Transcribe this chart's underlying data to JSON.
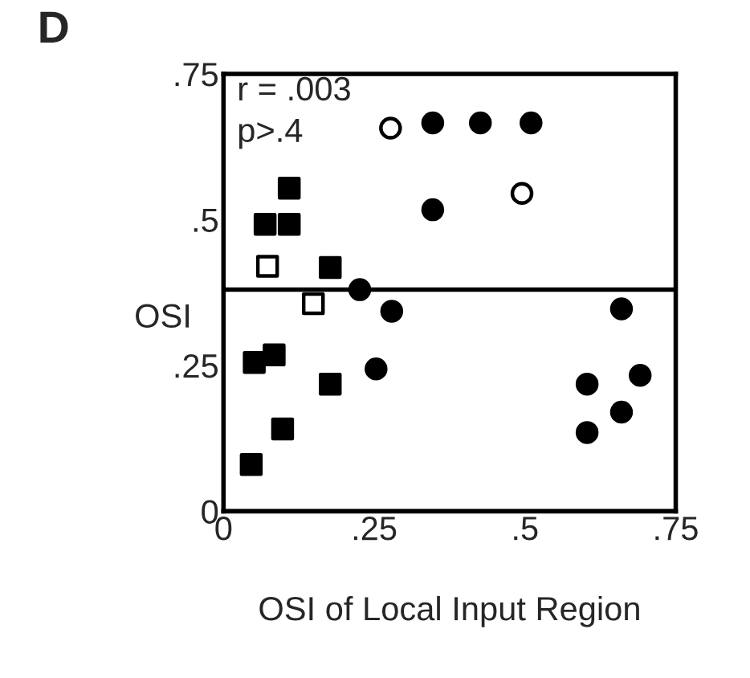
{
  "chart_data": {
    "type": "scatter",
    "title": "D",
    "xlabel": "OSI of Local Input Region",
    "ylabel": "OSI",
    "annotations": [
      "r = .003",
      "p>.4"
    ],
    "series": [
      {
        "color": "#000000",
        "marker": "circle",
        "x": [
          0.347,
          0.426,
          0.51,
          0.347,
          0.226,
          0.279,
          0.253,
          0.66,
          0.603,
          0.691,
          0.66,
          0.603
        ],
        "values": [
          0.666,
          0.666,
          0.666,
          0.517,
          0.38,
          0.343,
          0.244,
          0.347,
          0.218,
          0.233,
          0.17,
          0.135
        ]
      },
      {
        "color": "#ffffff",
        "marker": "circle",
        "x": [
          0.277,
          0.495
        ],
        "values": [
          0.657,
          0.545
        ]
      },
      {
        "color": "#000000",
        "marker": "square",
        "x": [
          0.109,
          0.069,
          0.109,
          0.177,
          0.084,
          0.051,
          0.177,
          0.098,
          0.046
        ],
        "values": [
          0.554,
          0.492,
          0.492,
          0.418,
          0.268,
          0.255,
          0.218,
          0.141,
          0.08
        ]
      },
      {
        "color": "#ffffff",
        "marker": "square",
        "x": [
          0.073,
          0.149
        ],
        "values": [
          0.42,
          0.356
        ]
      }
    ],
    "ref_lines": [
      {
        "axis": "y",
        "value": 0.38,
        "color": "#000000"
      }
    ],
    "xlim": [
      0,
      0.75
    ],
    "ylim": [
      0,
      0.75
    ],
    "xticks": [
      {
        "value": 0,
        "label": "0"
      },
      {
        "value": 0.25,
        "label": ".25"
      },
      {
        "value": 0.5,
        "label": ".5"
      },
      {
        "value": 0.75,
        "label": ".75"
      }
    ],
    "yticks": [
      {
        "value": 0,
        "label": "0"
      },
      {
        "value": 0.25,
        "label": ".25"
      },
      {
        "value": 0.5,
        "label": ".5"
      },
      {
        "value": 0.75,
        "label": ".75"
      }
    ],
    "grid": false,
    "legend": false
  }
}
